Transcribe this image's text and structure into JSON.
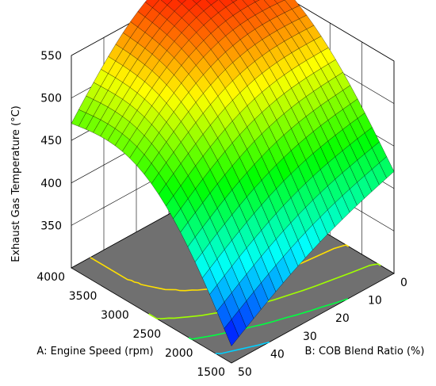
{
  "chart_data": {
    "type": "surface3d",
    "title": "",
    "zlabel": "Exhaust Gas Temperature (°C)",
    "xlabel": "A: Engine Speed (rpm)",
    "ylabel": "B: COB Blend Ratio (%)",
    "x_ticks": [
      1500,
      2000,
      2500,
      3000,
      3500,
      4000
    ],
    "y_ticks": [
      0,
      10,
      20,
      30,
      40,
      50
    ],
    "z_ticks": [
      350,
      400,
      450,
      500,
      550
    ],
    "xlim": [
      1500,
      4000
    ],
    "ylim": [
      0,
      50
    ],
    "zlim": [
      300,
      550
    ],
    "corner_values": [
      {
        "engine_speed": 4000,
        "cob_blend": 0,
        "temperature": 580
      },
      {
        "engine_speed": 4000,
        "cob_blend": 50,
        "temperature": 470
      },
      {
        "engine_speed": 1500,
        "cob_blend": 0,
        "temperature": 420
      },
      {
        "engine_speed": 1500,
        "cob_blend": 50,
        "temperature": 320
      }
    ],
    "contour_levels": [
      350,
      400,
      450,
      500
    ],
    "colormap": [
      "#0000ff",
      "#00ffff",
      "#00ff00",
      "#ffff00",
      "#ff0000"
    ],
    "grid": true,
    "floor_color": "#707070"
  }
}
